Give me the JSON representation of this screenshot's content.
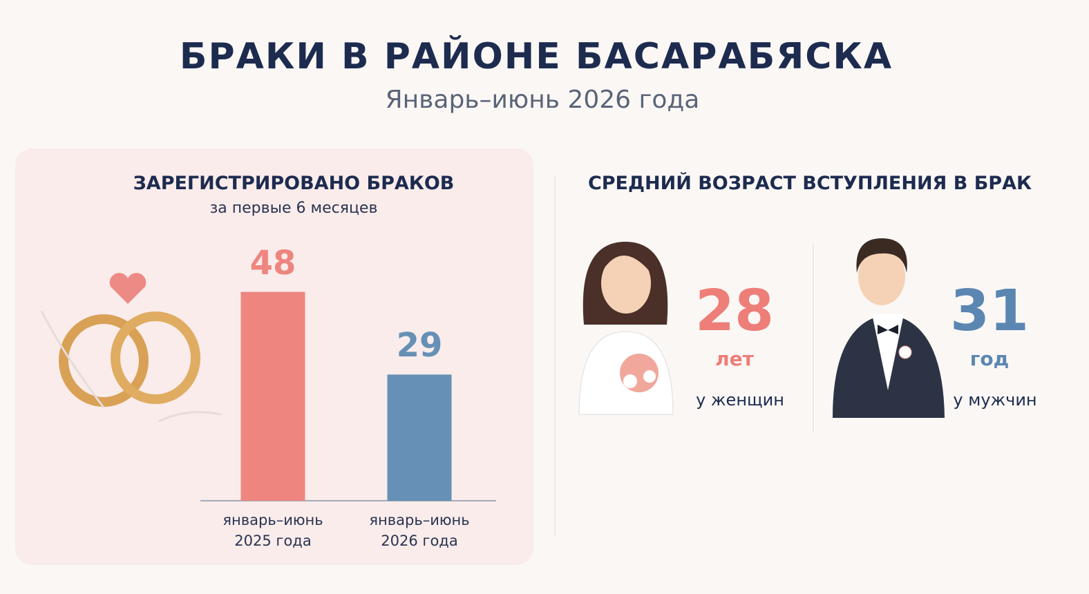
{
  "header": {
    "title": "БРАКИ В РАЙОНЕ БАСАРАБЯСКА",
    "subtitle": "Январь–июнь 2026 года"
  },
  "chart_data": {
    "type": "bar",
    "title": "ЗАРЕГИСТРИРОВАНО БРАКОВ",
    "subtitle": "за первые 6 месяцев",
    "categories": [
      "январь–июнь\n2025 года",
      "январь–июнь\n2026 года"
    ],
    "values": [
      48,
      29
    ],
    "colors": [
      "#ee867f",
      "#6690b5"
    ]
  },
  "ages": {
    "title": "СРЕДНИЙ ВОЗРАСТ ВСТУПЛЕНИЯ В БРАК",
    "items": [
      {
        "value": 28,
        "unit": "лет",
        "label": "у женщин",
        "color": "#ee7e78"
      },
      {
        "value": 31,
        "unit": "год",
        "label": "у мужчин",
        "color": "#5b86b2"
      }
    ]
  }
}
